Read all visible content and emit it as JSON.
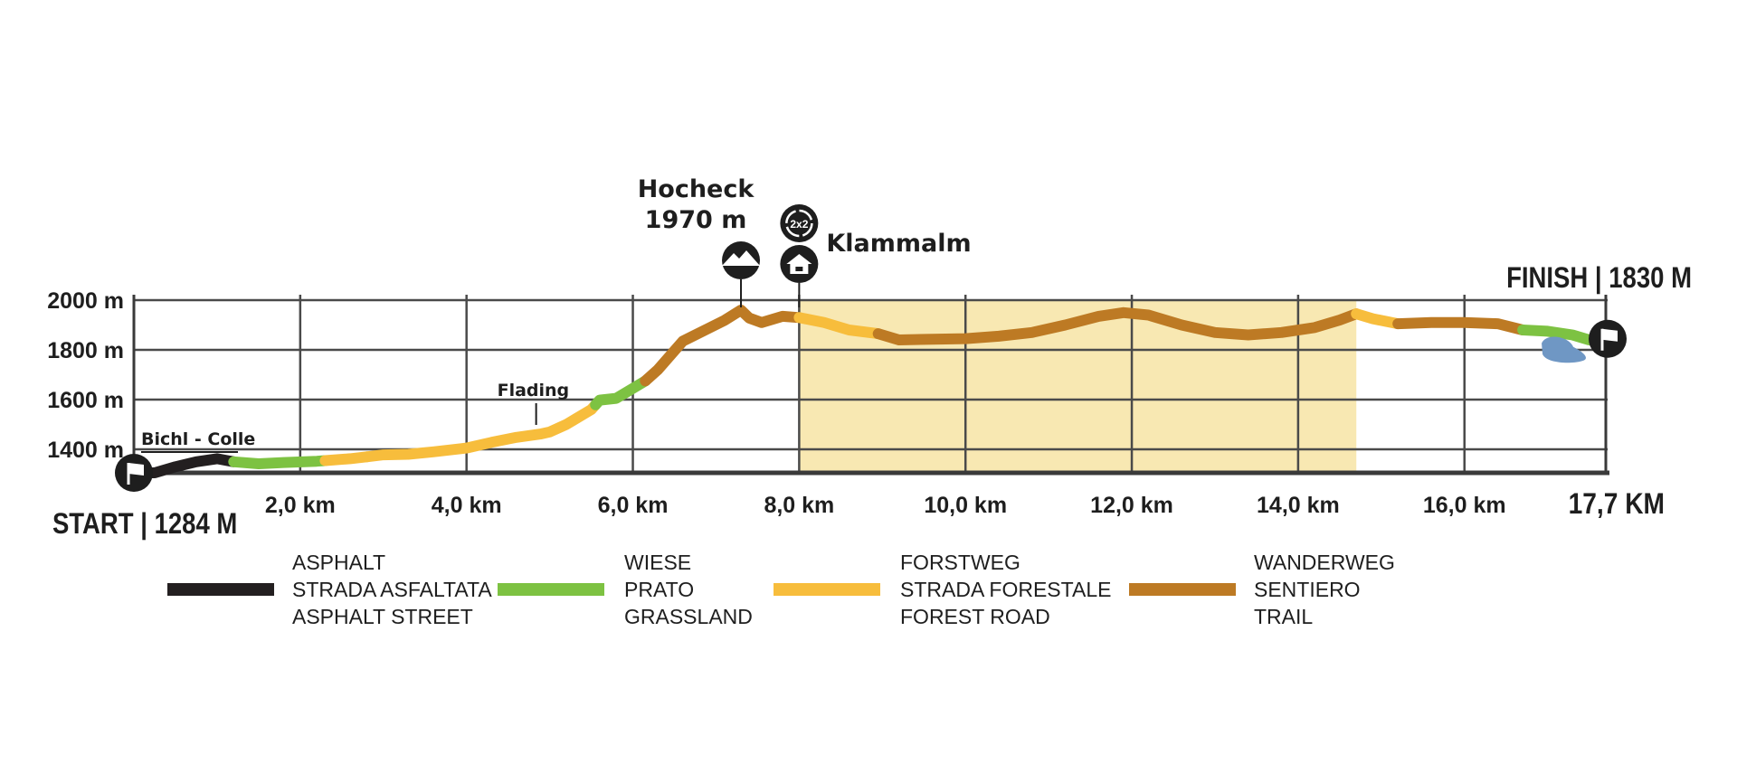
{
  "chart_data": {
    "type": "line",
    "title": "",
    "xlabel": "",
    "ylabel": "",
    "xlim": [
      0,
      17.7
    ],
    "ylim": [
      1284,
      2000
    ],
    "grid": true,
    "y_ticks": [
      {
        "value": 1400,
        "label": "1400 m"
      },
      {
        "value": 1600,
        "label": "1600 m"
      },
      {
        "value": 1800,
        "label": "1800 m"
      },
      {
        "value": 2000,
        "label": "2000 m"
      }
    ],
    "x_ticks": [
      {
        "value": 2,
        "label": "2,0  km"
      },
      {
        "value": 4,
        "label": "4,0  km"
      },
      {
        "value": 6,
        "label": "6,0  km"
      },
      {
        "value": 8,
        "label": "8,0  km"
      },
      {
        "value": 10,
        "label": "10,0  km"
      },
      {
        "value": 12,
        "label": "12,0  km"
      },
      {
        "value": 14,
        "label": "14,0  km"
      },
      {
        "value": 16,
        "label": "16,0  km"
      }
    ],
    "start_label": "START | 1284 M",
    "finish_label": "FINISH | 1830 M",
    "end_label": "17,7  KM",
    "highlight_range": {
      "from": 8.0,
      "to": 14.7,
      "color": "#f8e8b2"
    },
    "profile": [
      [
        0.0,
        1284
      ],
      [
        0.25,
        1305
      ],
      [
        0.5,
        1330
      ],
      [
        0.75,
        1350
      ],
      [
        1.0,
        1362
      ],
      [
        1.2,
        1350
      ],
      [
        1.5,
        1342
      ],
      [
        1.8,
        1347
      ],
      [
        2.2,
        1352
      ],
      [
        2.6,
        1362
      ],
      [
        3.0,
        1378
      ],
      [
        3.3,
        1380
      ],
      [
        3.6,
        1390
      ],
      [
        4.0,
        1405
      ],
      [
        4.3,
        1428
      ],
      [
        4.6,
        1448
      ],
      [
        4.9,
        1462
      ],
      [
        5.0,
        1470
      ],
      [
        5.2,
        1500
      ],
      [
        5.5,
        1560
      ],
      [
        5.6,
        1598
      ],
      [
        5.8,
        1605
      ],
      [
        6.0,
        1645
      ],
      [
        6.15,
        1675
      ],
      [
        6.3,
        1720
      ],
      [
        6.6,
        1835
      ],
      [
        6.9,
        1885
      ],
      [
        7.1,
        1918
      ],
      [
        7.3,
        1960
      ],
      [
        7.4,
        1928
      ],
      [
        7.55,
        1910
      ],
      [
        7.8,
        1935
      ],
      [
        8.0,
        1930
      ],
      [
        8.3,
        1910
      ],
      [
        8.6,
        1880
      ],
      [
        8.95,
        1865
      ],
      [
        9.2,
        1840
      ],
      [
        9.6,
        1843
      ],
      [
        10.0,
        1845
      ],
      [
        10.4,
        1855
      ],
      [
        10.8,
        1870
      ],
      [
        11.2,
        1900
      ],
      [
        11.6,
        1935
      ],
      [
        11.9,
        1950
      ],
      [
        12.2,
        1940
      ],
      [
        12.6,
        1900
      ],
      [
        13.0,
        1870
      ],
      [
        13.4,
        1860
      ],
      [
        13.8,
        1870
      ],
      [
        14.2,
        1890
      ],
      [
        14.5,
        1920
      ],
      [
        14.7,
        1945
      ],
      [
        14.9,
        1925
      ],
      [
        15.2,
        1905
      ],
      [
        15.6,
        1910
      ],
      [
        16.0,
        1910
      ],
      [
        16.4,
        1905
      ],
      [
        16.7,
        1880
      ],
      [
        17.0,
        1875
      ],
      [
        17.3,
        1860
      ],
      [
        17.5,
        1840
      ],
      [
        17.7,
        1830
      ]
    ],
    "surfaces": [
      {
        "from": 0.0,
        "to": 1.2,
        "type": "asphalt"
      },
      {
        "from": 1.2,
        "to": 2.3,
        "type": "grassland"
      },
      {
        "from": 2.3,
        "to": 2.8,
        "type": "forest_road"
      },
      {
        "from": 2.8,
        "to": 5.55,
        "type": "forest_road"
      },
      {
        "from": 5.55,
        "to": 6.15,
        "type": "grassland"
      },
      {
        "from": 6.15,
        "to": 8.0,
        "type": "trail"
      },
      {
        "from": 8.0,
        "to": 8.95,
        "type": "forest_road"
      },
      {
        "from": 8.95,
        "to": 14.7,
        "type": "trail"
      },
      {
        "from": 14.7,
        "to": 15.2,
        "type": "forest_road"
      },
      {
        "from": 15.2,
        "to": 16.7,
        "type": "trail"
      },
      {
        "from": 16.7,
        "to": 17.7,
        "type": "grassland"
      }
    ],
    "surface_colors": {
      "asphalt": "#231f20",
      "grassland": "#7dc242",
      "forest_road": "#f7bd3c",
      "trail": "#bd7a24"
    },
    "lake_color": "#6f97c4",
    "points_of_interest": [
      {
        "name": "Bichl - Colle",
        "x": 0.1,
        "elevation": null
      },
      {
        "name": "Flading",
        "x": 4.75,
        "elevation": null
      },
      {
        "name": "Hocheck",
        "x": 7.3,
        "elevation": "1970 m",
        "icon": "mountain-peak-icon"
      },
      {
        "name": "Klammalm",
        "x": 8.0,
        "elevation": null,
        "icon": "hut-icon",
        "icon2": "bike-2x2-icon"
      }
    ],
    "legend": [
      {
        "type": "asphalt",
        "lines": [
          "ASPHALT",
          "STRADA ASFALTATA",
          "ASPHALT STREET"
        ]
      },
      {
        "type": "grassland",
        "lines": [
          "WIESE",
          "PRATO",
          "GRASSLAND"
        ]
      },
      {
        "type": "forest_road",
        "lines": [
          "FORSTWEG",
          "STRADA FORESTALE",
          "FOREST ROAD"
        ]
      },
      {
        "type": "trail",
        "lines": [
          "WANDERWEG",
          "SENTIERO",
          "TRAIL"
        ]
      }
    ]
  }
}
